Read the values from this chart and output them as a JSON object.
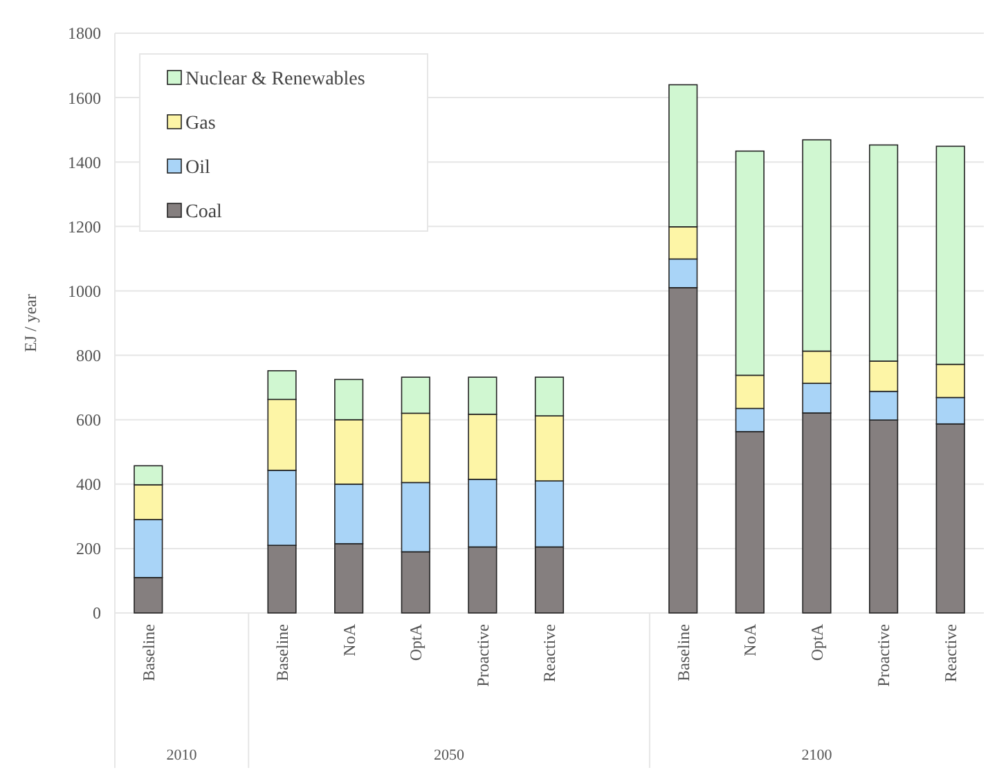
{
  "chart_data": {
    "type": "bar",
    "stacked": true,
    "ylabel": "EJ / year",
    "categories": [
      "Baseline",
      null,
      "Baseline",
      "NoA",
      "OptA",
      "Proactive",
      "Reactive",
      null,
      "Baseline",
      "NoA",
      "OptA",
      "Proactive",
      "Reactive"
    ],
    "series": [
      {
        "name": "Coal",
        "color": "#857f7f",
        "values": [
          110,
          null,
          210,
          215,
          190,
          205,
          205,
          null,
          1010,
          563,
          621,
          599,
          587
        ]
      },
      {
        "name": "Oil",
        "color": "#a9d4f7",
        "values": [
          180,
          null,
          233,
          185,
          215,
          210,
          205,
          null,
          89,
          72,
          92,
          89,
          82
        ]
      },
      {
        "name": "Gas",
        "color": "#fdf5a6",
        "values": [
          108,
          null,
          220,
          200,
          215,
          202,
          202,
          null,
          100,
          103,
          100,
          94,
          103
        ]
      },
      {
        "name": "Nuclear & Renewables",
        "color": "#d0f7d1",
        "values": [
          59,
          null,
          89,
          125,
          112,
          115,
          120,
          null,
          441,
          696,
          656,
          671,
          677
        ]
      }
    ],
    "ylim": [
      0,
      1800
    ],
    "yticks": [
      0,
      200,
      400,
      600,
      800,
      1000,
      1200,
      1400,
      1600,
      1800
    ],
    "grid": "y",
    "legend": "top left",
    "annotations": [
      "2010",
      "2050",
      "2100"
    ]
  }
}
